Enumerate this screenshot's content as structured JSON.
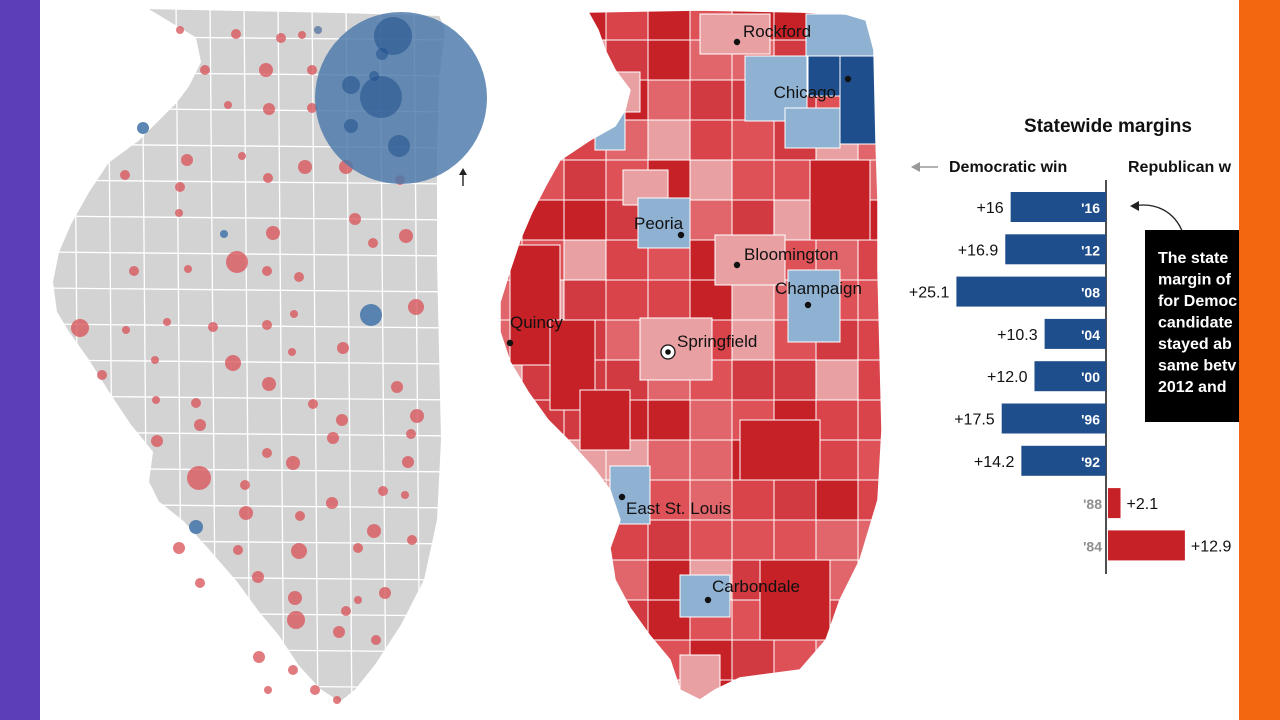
{
  "frame": {
    "left_color": "#5a3fb8",
    "right_color": "#f2670f"
  },
  "colors": {
    "land_gray": "#d3d3d3",
    "dem_dark": "#1f4e8c",
    "dem_light": "#8fb2d3",
    "dem_bubble": "#4a79ab",
    "rep_dark": "#c62127",
    "rep_mid": "#d9444a",
    "rep_light": "#e9a0a3",
    "rep_bubble": "#d9565c"
  },
  "map_cities": [
    "Rockford",
    "Chicago",
    "Peoria",
    "Bloomington",
    "Champaign",
    "Quincy",
    "Springfield",
    "East St. Louis",
    "Carbondale"
  ],
  "chart": {
    "title": "Statewide margins",
    "dem_header": "Democratic win",
    "rep_header": "Republican w",
    "callout_lines": [
      "The state",
      "margin of",
      "for Democ",
      "candidate",
      "stayed ab",
      "same betv",
      "2012 and"
    ]
  },
  "chart_data": {
    "type": "bar",
    "title": "Statewide margins",
    "categories": [
      "'16",
      "'12",
      "'08",
      "'04",
      "'00",
      "'96",
      "'92",
      "'88",
      "'84"
    ],
    "series": [
      {
        "name": "Democratic win",
        "values": [
          16,
          16.9,
          25.1,
          10.3,
          12.0,
          17.5,
          14.2,
          null,
          null
        ]
      },
      {
        "name": "Republican w",
        "values": [
          null,
          null,
          null,
          null,
          null,
          null,
          null,
          2.1,
          12.9
        ]
      }
    ],
    "value_labels": [
      "+16",
      "+16.9",
      "+25.1",
      "+10.3",
      "+12.0",
      "+17.5",
      "+14.2",
      "+2.1",
      "+12.9"
    ],
    "orientation": "horizontal-diverging",
    "grid": false
  }
}
